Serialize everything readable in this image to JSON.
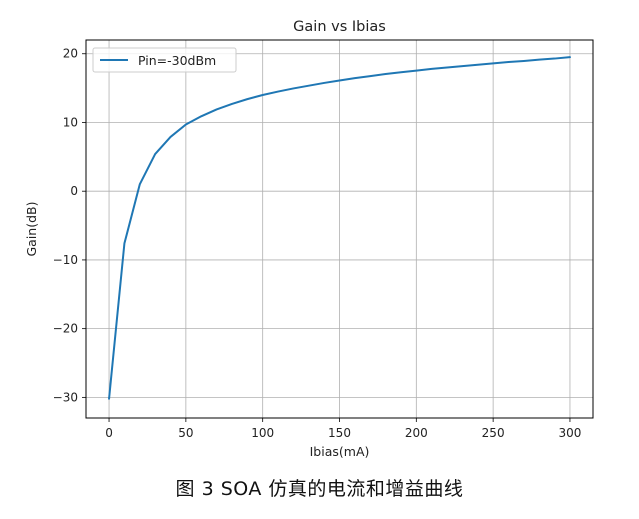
{
  "chart_data": {
    "type": "line",
    "title": "Gain vs Ibias",
    "xlabel": "Ibias(mA)",
    "ylabel": "Gain(dB)",
    "xlim": [
      -15,
      315
    ],
    "ylim": [
      -33,
      22
    ],
    "xticks": [
      0,
      50,
      100,
      150,
      200,
      250,
      300
    ],
    "yticks": [
      -30,
      -20,
      -10,
      0,
      10,
      20
    ],
    "xtick_labels": [
      "0",
      "50",
      "100",
      "150",
      "200",
      "250",
      "300"
    ],
    "ytick_labels": [
      "−30",
      "−20",
      "−10",
      "0",
      "10",
      "20"
    ],
    "grid": true,
    "legend_position": "top-left",
    "series": [
      {
        "name": "Pin=-30dBm",
        "color": "#1f77b4",
        "x": [
          0,
          10,
          20,
          30,
          40,
          50,
          60,
          70,
          80,
          90,
          100,
          110,
          120,
          130,
          140,
          150,
          160,
          170,
          180,
          190,
          200,
          210,
          220,
          230,
          240,
          250,
          260,
          270,
          280,
          290,
          300
        ],
        "y": [
          -30.2,
          -7.6,
          1.0,
          5.4,
          7.9,
          9.7,
          10.9,
          11.9,
          12.7,
          13.4,
          14.0,
          14.5,
          14.95,
          15.35,
          15.75,
          16.1,
          16.45,
          16.75,
          17.05,
          17.3,
          17.55,
          17.8,
          18.0,
          18.2,
          18.4,
          18.6,
          18.8,
          18.95,
          19.15,
          19.3,
          19.5
        ]
      }
    ]
  },
  "caption": "图 3 SOA 仿真的电流和增益曲线"
}
